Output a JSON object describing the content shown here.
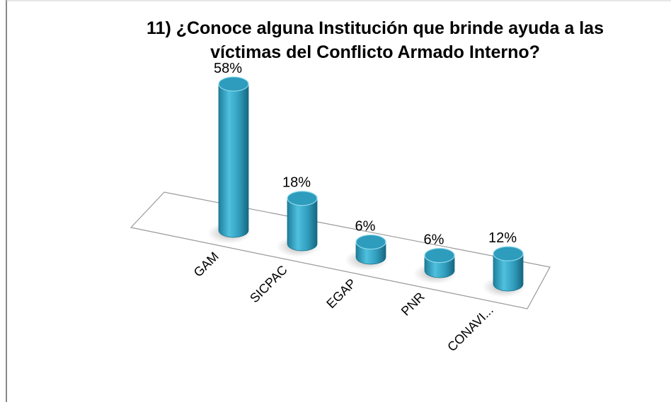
{
  "chart_data": {
    "type": "bar3d",
    "title": [
      "11) ¿Conoce alguna Institución que brinde ayuda a las",
      "víctimas del Conflicto Armado Interno?"
    ],
    "categories": [
      "GAM",
      "SICPAC",
      "EGAP",
      "PNR",
      "CONAVI..."
    ],
    "values": [
      58,
      18,
      6,
      6,
      12
    ],
    "value_labels": [
      "58%",
      "18%",
      "6%",
      "6%",
      "12%"
    ],
    "color": "#36a7c8"
  }
}
